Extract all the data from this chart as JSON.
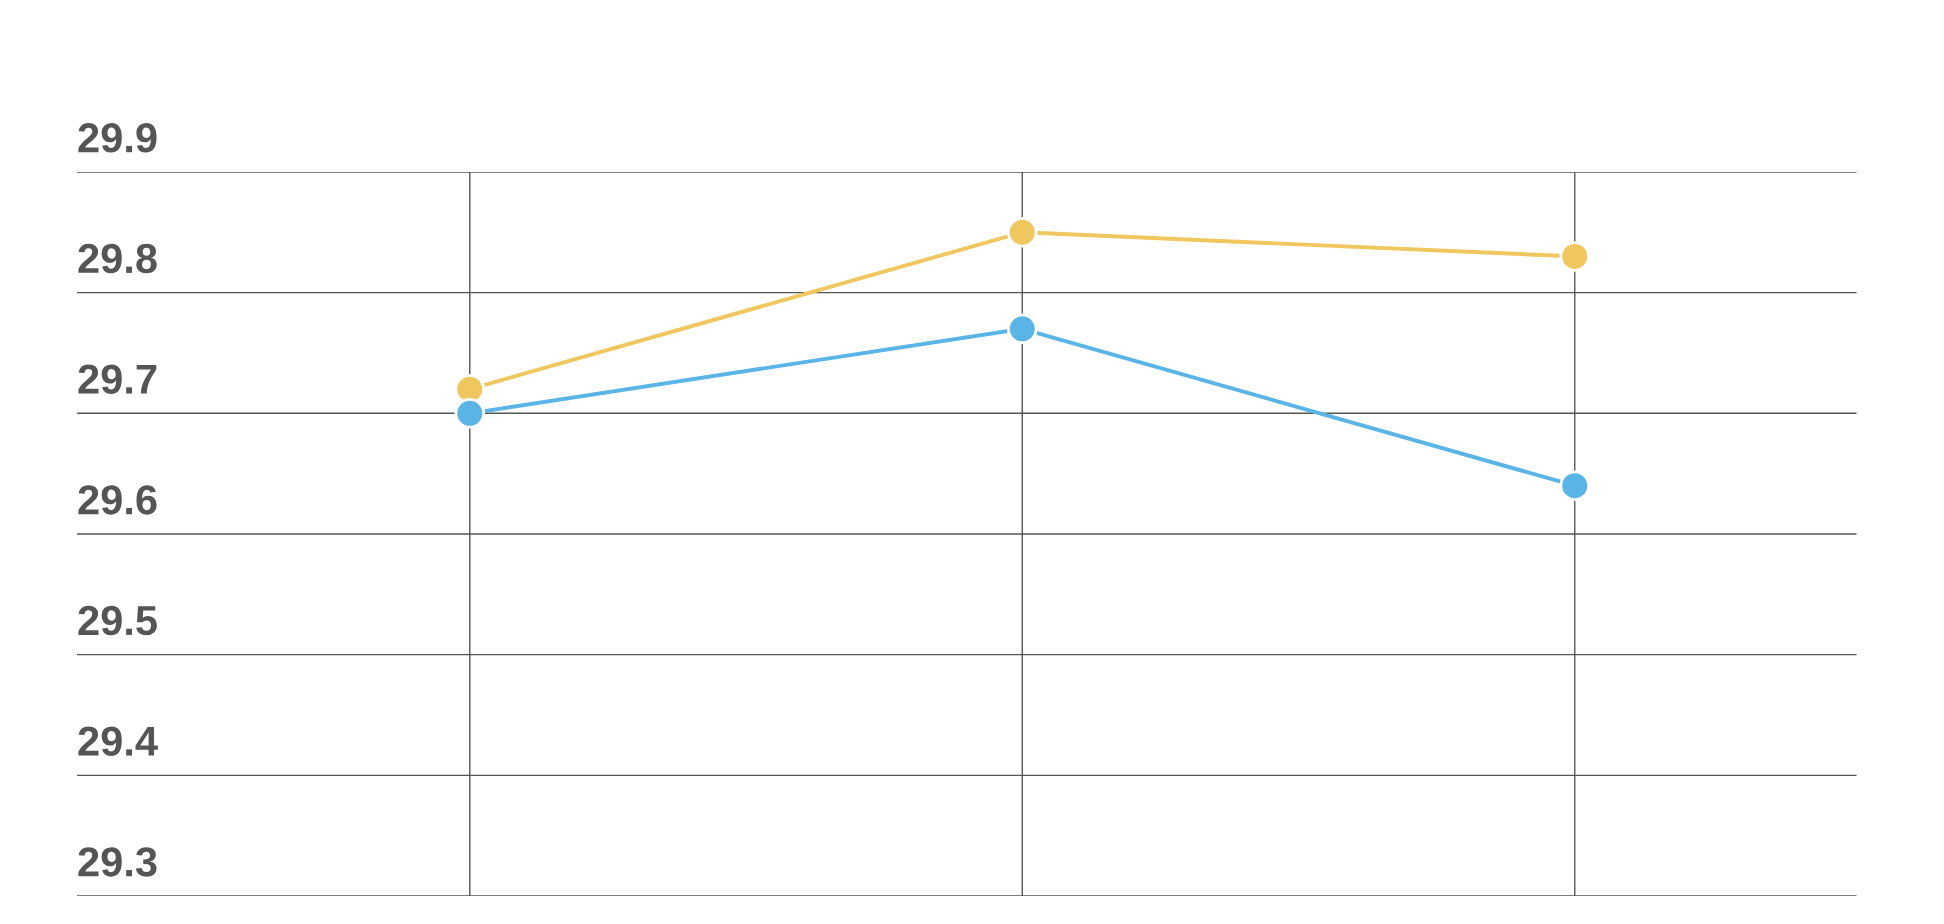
{
  "chart_data": {
    "type": "line",
    "categories": [
      null,
      null,
      null
    ],
    "series": [
      {
        "color": "#f0c75e",
        "values": [
          29.72,
          29.85,
          29.83
        ]
      },
      {
        "color": "#5ab4e5",
        "values": [
          29.7,
          29.77,
          29.64
        ]
      }
    ],
    "ylim": [
      29.3,
      29.9
    ],
    "yticks": [
      29.3,
      29.4,
      29.5,
      29.6,
      29.7,
      29.8,
      29.9
    ],
    "grid": true,
    "marker": "circle",
    "line_style": "solid"
  }
}
